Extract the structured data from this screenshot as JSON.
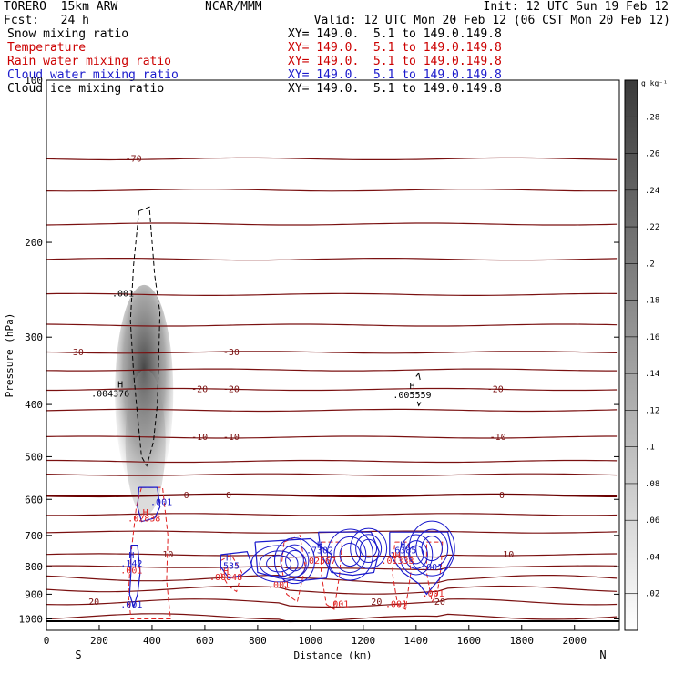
{
  "header": {
    "model": "TORERO  15km ARW",
    "center": "NCAR/MMM",
    "init": "Init: 12 UTC Sun 19 Feb 12",
    "fcst": "Fcst:   24 h",
    "valid": "Valid: 12 UTC Mon 20 Feb 12 (06 CST Mon 20 Feb 12)"
  },
  "fields": [
    {
      "name": "Snow mixing ratio",
      "xy": "XY= 149.0.  5.1 to 149.0.149.8",
      "color": "#000000"
    },
    {
      "name": "Temperature",
      "xy": "XY= 149.0.  5.1 to 149.0.149.8",
      "color": "#cc0000"
    },
    {
      "name": "Rain water mixing ratio",
      "xy": "XY= 149.0.  5.1 to 149.0.149.8",
      "color": "#cc0000"
    },
    {
      "name": "Cloud water mixing ratio",
      "xy": "XY= 149.0.  5.1 to 149.0.149.8",
      "color": "#1a1acc"
    },
    {
      "name": "Cloud ice mixing ratio",
      "xy": "XY= 149.0.  5.1 to 149.0.149.8",
      "color": "#000000"
    }
  ],
  "colors": {
    "temperature": "#7a1010",
    "temperature_zero": "#6a0000",
    "rain": "#e02020",
    "cloud_water": "#1a1acc",
    "cloud_ice": "#000000",
    "snow_shade": "#333333"
  },
  "chart_data": {
    "type": "contour-cross-section",
    "xlabel": "Distance (km)",
    "ylabel": "Pressure (hPa)",
    "x_ticks": [
      0,
      200,
      400,
      600,
      800,
      1000,
      1200,
      1400,
      1600,
      1800,
      2000
    ],
    "y_ticks": [
      200,
      300,
      400,
      500,
      600,
      700,
      800,
      900,
      1000
    ],
    "top_tick_label": "100",
    "xlim": [
      0,
      2170
    ],
    "ylim": [
      1050,
      100
    ],
    "y_scale": "log",
    "left_end_label": "S",
    "right_end_label": "N",
    "colorbar": {
      "unit": "g kg⁻¹",
      "ticks": [
        ".02",
        ".04",
        ".06",
        ".08",
        ".1",
        ".12",
        ".14",
        ".16",
        ".18",
        ".2",
        ".22",
        ".24",
        ".26",
        ".28"
      ],
      "range": [
        0,
        0.3
      ]
    },
    "temperature_levels": [
      {
        "p": 140,
        "label": "-70"
      },
      {
        "p": 320,
        "label": "-30",
        "labels_x": [
          110,
          700
        ]
      },
      {
        "p": 375,
        "label": "-20",
        "labels_x": [
          580,
          700,
          1700
        ]
      },
      {
        "p": 460,
        "label": "-10",
        "labels_x": [
          580,
          700,
          1710
        ]
      },
      {
        "p": 590,
        "label": "0",
        "labels_x": [
          530,
          690,
          1725
        ]
      },
      {
        "p": 760,
        "label": "10",
        "labels_x": [
          460,
          1750
        ]
      },
      {
        "p": 930,
        "label": "20",
        "labels_x": [
          180,
          1250,
          1490
        ]
      }
    ],
    "annotations": [
      {
        "x": 280,
        "p": 372,
        "text": "H",
        "color": "#000000"
      },
      {
        "x": 242,
        "p": 387,
        "text": ".004376",
        "color": "#000000"
      },
      {
        "x": 1385,
        "p": 374,
        "text": "H",
        "color": "#000000"
      },
      {
        "x": 1385,
        "p": 389,
        "text": ".005559",
        "color": "#000000"
      },
      {
        "x": 290,
        "p": 252,
        "text": ".001",
        "color": "#000000"
      },
      {
        "x": 435,
        "p": 615,
        "text": ".001",
        "color": "#1a1acc"
      },
      {
        "x": 375,
        "p": 643,
        "text": "H",
        "color": "#e02020"
      },
      {
        "x": 370,
        "p": 660,
        "text": ".02838",
        "color": "#e02020"
      },
      {
        "x": 322,
        "p": 772,
        "text": "H",
        "color": "#1a1acc"
      },
      {
        "x": 322,
        "p": 800,
        "text": ".142",
        "color": "#1a1acc"
      },
      {
        "x": 322,
        "p": 824,
        "text": ".001",
        "color": "#e02020"
      },
      {
        "x": 322,
        "p": 953,
        "text": ".001",
        "color": "#1a1acc"
      },
      {
        "x": 690,
        "p": 780,
        "text": "H",
        "color": "#1a1acc"
      },
      {
        "x": 690,
        "p": 808,
        "text": ".535",
        "color": "#1a1acc"
      },
      {
        "x": 680,
        "p": 827,
        "text": "H",
        "color": "#e02020"
      },
      {
        "x": 680,
        "p": 847,
        "text": ".00848",
        "color": "#e02020"
      },
      {
        "x": 1035,
        "p": 738,
        "text": "H",
        "color": "#1a1acc"
      },
      {
        "x": 1035,
        "p": 755,
        "text": ".7302",
        "color": "#1a1acc"
      },
      {
        "x": 1035,
        "p": 790,
        "text": ".02567",
        "color": "#e02020"
      },
      {
        "x": 1350,
        "p": 738,
        "text": "H",
        "color": "#1a1acc"
      },
      {
        "x": 1350,
        "p": 755,
        "text": ".6385",
        "color": "#1a1acc"
      },
      {
        "x": 1330,
        "p": 772,
        "text": "H",
        "color": "#e02020"
      },
      {
        "x": 1330,
        "p": 790,
        "text": ".01333",
        "color": "#e02020"
      },
      {
        "x": 1460,
        "p": 812,
        "text": ".001",
        "color": "#1a1acc"
      },
      {
        "x": 880,
        "p": 876,
        "text": ".001",
        "color": "#e02020"
      },
      {
        "x": 1105,
        "p": 950,
        "text": ".001",
        "color": "#e02020"
      },
      {
        "x": 1325,
        "p": 950,
        "text": ".001",
        "color": "#e02020"
      },
      {
        "x": 1465,
        "p": 910,
        "text": ".001",
        "color": "#e02020"
      }
    ]
  }
}
